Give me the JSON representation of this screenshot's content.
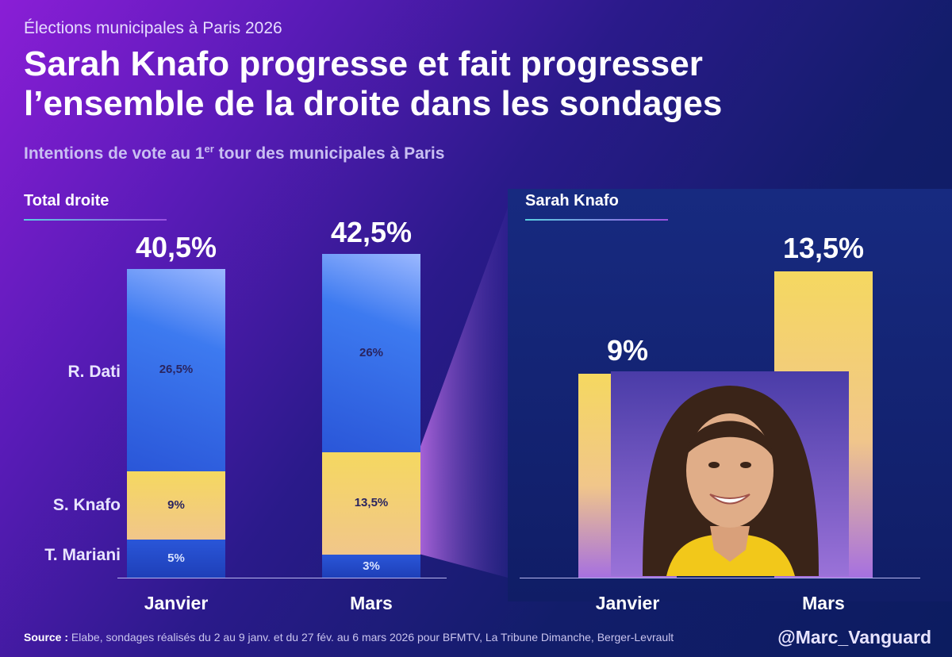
{
  "header": {
    "eyebrow": "Élections municipales à Paris 2026",
    "title_line1": "Sarah Knafo progresse et fait progresser",
    "title_line2": "l’ensemble de la droite dans les sondages",
    "subtitle_before": "Intentions de vote au 1",
    "subtitle_sup": "er",
    "subtitle_after": " tour des municipales à Paris"
  },
  "colors": {
    "blue_bar": "#3d7af0",
    "blue_bar_dark": "#2a56d8",
    "yellow_bar": "#f5d860",
    "yellow_bar_light": "#f1c68a",
    "violet_fade": "#a670e0",
    "accent_line": "#5ad0e0"
  },
  "chart_data": [
    {
      "type": "bar",
      "title": "Total droite",
      "stacked": true,
      "categories": [
        "Janvier",
        "Mars"
      ],
      "totals_labels": [
        "40,5%",
        "42,5%"
      ],
      "totals": [
        40.5,
        42.5
      ],
      "series": [
        {
          "name": "T. Mariani",
          "values": [
            5,
            3
          ],
          "labels": [
            "5%",
            "3%"
          ]
        },
        {
          "name": "S. Knafo",
          "values": [
            9,
            13.5
          ],
          "labels": [
            "9%",
            "13,5%"
          ]
        },
        {
          "name": "R. Dati",
          "values": [
            26.5,
            26
          ],
          "labels": [
            "26,5%",
            "26%"
          ]
        }
      ]
    },
    {
      "type": "bar",
      "title": "Sarah Knafo",
      "categories": [
        "Janvier",
        "Mars"
      ],
      "values": [
        9,
        13.5
      ],
      "labels": [
        "9%",
        "13,5%"
      ]
    }
  ],
  "footer": {
    "source_label": "Source :",
    "source_text": " Elabe, sondages réalisés du 2 au 9 janv. et du 27 fév. au 6 mars 2026 pour BFMTV, La Tribune Dimanche, Berger-Levrault",
    "handle": "@Marc_Vanguard"
  },
  "photo": {
    "icon": "portrait-photo"
  }
}
